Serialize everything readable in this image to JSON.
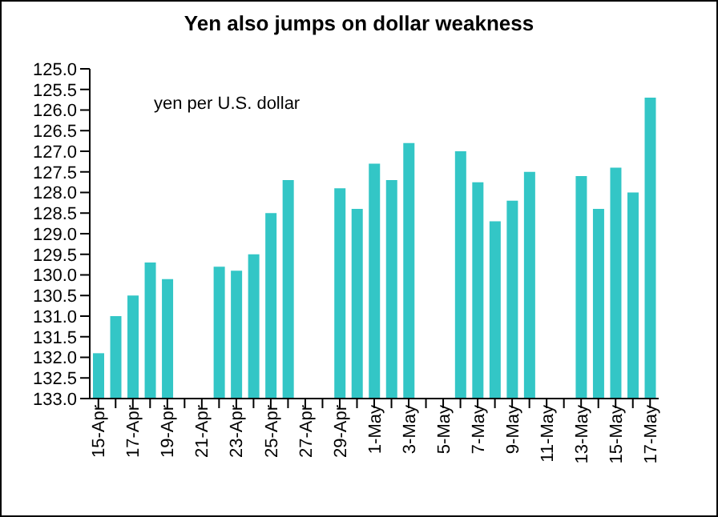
{
  "chart_data": {
    "type": "bar",
    "title": "Yen also jumps on dollar weakness",
    "annotations": [
      "yen per U.S. dollar"
    ],
    "categories": [
      "15-Apr",
      null,
      "17-Apr",
      null,
      "19-Apr",
      null,
      "21-Apr",
      null,
      "23-Apr",
      null,
      "25-Apr",
      null,
      "27-Apr",
      null,
      "29-Apr",
      null,
      "1-May",
      null,
      "3-May",
      null,
      "5-May",
      null,
      "7-May",
      null,
      "9-May",
      null,
      "11-May",
      null,
      "13-May",
      null,
      "15-May",
      null,
      "17-May"
    ],
    "values": [
      -1.1,
      -2.0,
      -2.5,
      -3.3,
      -2.9,
      null,
      null,
      -3.2,
      -3.1,
      -3.5,
      -4.5,
      -5.3,
      null,
      null,
      -5.1,
      -4.6,
      -5.7,
      -5.3,
      -6.2,
      null,
      null,
      -6.0,
      -5.25,
      -4.3,
      -4.8,
      -5.5,
      null,
      null,
      -5.4,
      -4.6,
      -5.6,
      -5.0,
      -7.3
    ],
    "base": [
      133,
      133,
      133,
      133,
      133,
      null,
      null,
      133,
      133,
      133,
      133,
      133,
      null,
      null,
      133,
      133,
      133,
      133,
      133,
      null,
      null,
      133,
      133,
      133,
      133,
      133,
      null,
      null,
      133,
      133,
      133,
      133,
      133
    ],
    "color": "#33c6c6",
    "ylim": [
      133,
      125
    ],
    "yticks": [
      {
        "value": 125,
        "label": "125.0"
      },
      {
        "value": 125.5,
        "label": "125.5"
      },
      {
        "value": 126,
        "label": "126.0"
      },
      {
        "value": 126.5,
        "label": "126.5"
      },
      {
        "value": 127,
        "label": "127.0"
      },
      {
        "value": 127.5,
        "label": "127.5"
      },
      {
        "value": 128,
        "label": "128.0"
      },
      {
        "value": 128.5,
        "label": "128.5"
      },
      {
        "value": 129,
        "label": "129.0"
      },
      {
        "value": 129.5,
        "label": "129.5"
      },
      {
        "value": 130,
        "label": "130.0"
      },
      {
        "value": 130.5,
        "label": "130.5"
      },
      {
        "value": 131,
        "label": "131.0"
      },
      {
        "value": 131.5,
        "label": "131.5"
      },
      {
        "value": 132,
        "label": "132.0"
      },
      {
        "value": 132.5,
        "label": "132.5"
      },
      {
        "value": 133,
        "label": "133.0"
      }
    ],
    "grid": false,
    "legend": false
  }
}
